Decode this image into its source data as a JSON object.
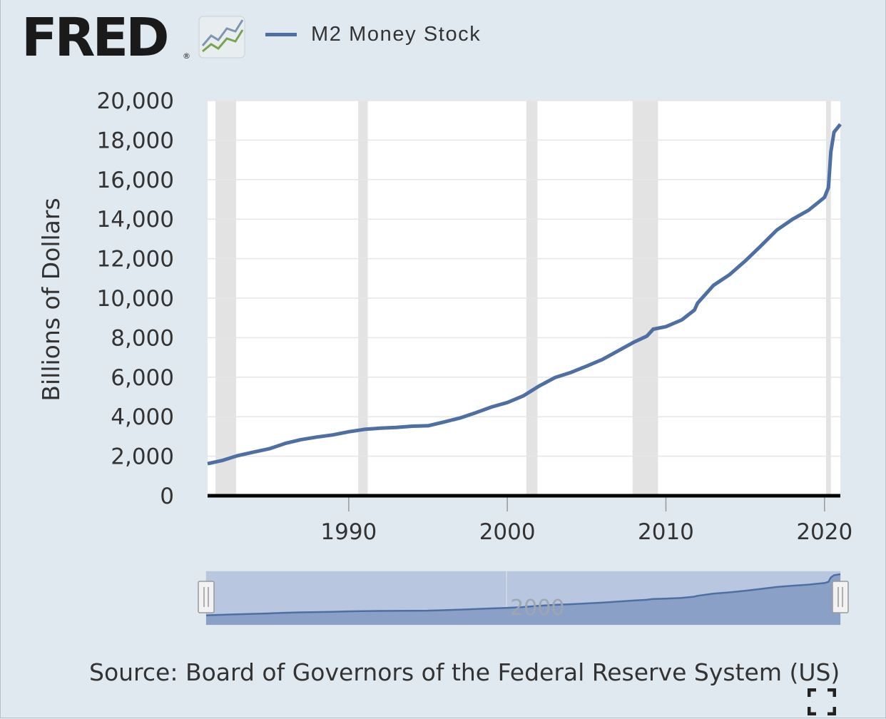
{
  "brand": {
    "logo_text": "FRED",
    "registered_mark": "®"
  },
  "legend": {
    "series_label": "M2 Money Stock",
    "color": "#4e6fa3"
  },
  "source_text": "Source: Board of Governors of the Federal Reserve System (US)",
  "icons": {
    "logo_graph": "line-graph-icon",
    "fullscreen": "fullscreen-icon"
  },
  "navigator": {
    "tick_label": "2000",
    "range_start_year": 1981.1,
    "range_end_year": 2021.0
  },
  "chart_data": {
    "type": "line",
    "title": "",
    "xlabel": "",
    "ylabel": "Billions of Dollars",
    "ylim": [
      0,
      20000
    ],
    "xlim": [
      1981.1,
      2021.0
    ],
    "grid": true,
    "legend_position": "top",
    "y_ticks": [
      0,
      2000,
      4000,
      6000,
      8000,
      10000,
      12000,
      14000,
      16000,
      18000,
      20000
    ],
    "y_tick_labels": [
      "0",
      "2,000",
      "4,000",
      "6,000",
      "8,000",
      "10,000",
      "12,000",
      "14,000",
      "16,000",
      "18,000",
      "20,000"
    ],
    "x_ticks": [
      1990,
      2000,
      2010,
      2020
    ],
    "x_tick_labels": [
      "1990",
      "2000",
      "2010",
      "2020"
    ],
    "recessions": [
      [
        1981.6,
        1982.9
      ],
      [
        1990.6,
        1991.2
      ],
      [
        2001.2,
        2001.9
      ],
      [
        2007.9,
        2009.5
      ],
      [
        2020.1,
        2020.4
      ]
    ],
    "colors": {
      "line": "#4e6fa3",
      "recession": "#e3e3e3",
      "plot_bg": "#ffffff",
      "grid": "#e6e6e6"
    },
    "series": [
      {
        "name": "M2 Money Stock",
        "x": [
          1981.1,
          1982.0,
          1983.0,
          1984.0,
          1985.0,
          1986.0,
          1987.0,
          1988.0,
          1989.0,
          1990.0,
          1991.0,
          1992.0,
          1993.0,
          1994.0,
          1995.0,
          1996.0,
          1997.0,
          1998.0,
          1999.0,
          2000.0,
          2001.0,
          2002.0,
          2003.0,
          2004.0,
          2005.0,
          2006.0,
          2007.0,
          2008.0,
          2008.8,
          2009.2,
          2010.0,
          2011.0,
          2011.8,
          2012.0,
          2013.0,
          2014.0,
          2015.0,
          2016.0,
          2017.0,
          2018.0,
          2019.0,
          2020.0,
          2020.25,
          2020.4,
          2020.6,
          2021.0
        ],
        "y": [
          1620,
          1780,
          2030,
          2210,
          2380,
          2650,
          2840,
          2970,
          3080,
          3240,
          3360,
          3420,
          3460,
          3520,
          3540,
          3730,
          3930,
          4200,
          4490,
          4720,
          5050,
          5550,
          5980,
          6240,
          6560,
          6900,
          7340,
          7780,
          8080,
          8430,
          8560,
          8900,
          9400,
          9750,
          10650,
          11180,
          11880,
          12650,
          13450,
          14000,
          14450,
          15100,
          15600,
          17400,
          18400,
          18800
        ]
      }
    ]
  }
}
